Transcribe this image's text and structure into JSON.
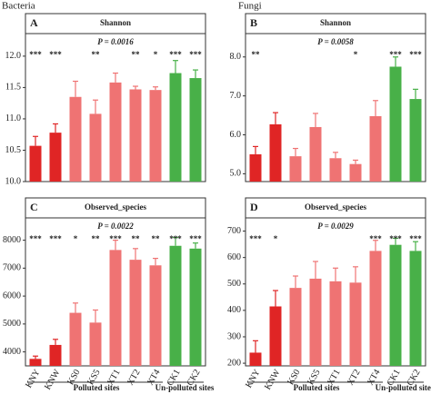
{
  "titles": [
    "Bacteria",
    "Fungi"
  ],
  "chart_data": [
    {
      "type": "bar",
      "panel": "A",
      "header": "Shannon",
      "annotation": "P = 0.0016",
      "values": [
        10.57,
        10.78,
        11.35,
        11.08,
        11.58,
        11.47,
        11.46,
        11.73,
        11.65
      ],
      "errors": [
        0.15,
        0.14,
        0.25,
        0.22,
        0.15,
        0.05,
        0.05,
        0.2,
        0.13
      ],
      "significance": [
        "***",
        "***",
        null,
        "**",
        null,
        "**",
        "*",
        "***",
        "***"
      ],
      "colors": [
        "#e02525",
        "#e02525",
        "#ef7373",
        "#ef7373",
        "#ef7373",
        "#ef7373",
        "#ef7373",
        "#48b048",
        "#48b048"
      ],
      "ylim": [
        10.0,
        12.36
      ],
      "yticks": [
        {
          "value": 10,
          "label": "10.0"
        },
        {
          "value": 10.5,
          "label": "10.5"
        },
        {
          "value": 11,
          "label": "11.0"
        },
        {
          "value": 11.5,
          "label": "11.5"
        },
        {
          "value": 12,
          "label": "12.0"
        }
      ]
    },
    {
      "type": "bar",
      "panel": "B",
      "header": "Shannon",
      "annotation": "P = 0.0058",
      "values": [
        5.5,
        6.27,
        5.45,
        6.2,
        5.4,
        5.25,
        6.48,
        7.75,
        6.92
      ],
      "errors": [
        0.2,
        0.3,
        0.2,
        0.35,
        0.15,
        0.1,
        0.4,
        0.25,
        0.25
      ],
      "significance": [
        "**",
        null,
        null,
        null,
        null,
        "*",
        null,
        "***",
        "***"
      ],
      "colors": [
        "#e02525",
        "#e02525",
        "#ef7373",
        "#ef7373",
        "#ef7373",
        "#ef7373",
        "#ef7373",
        "#48b048",
        "#48b048"
      ],
      "ylim": [
        4.8,
        8.6
      ],
      "yticks": [
        {
          "value": 5,
          "label": "5.0"
        },
        {
          "value": 6,
          "label": "6.0"
        },
        {
          "value": 7,
          "label": "7.0"
        },
        {
          "value": 8,
          "label": "8.0"
        }
      ]
    },
    {
      "type": "bar",
      "panel": "C",
      "header": "Observed_species",
      "annotation": "P = 0.0022",
      "categories": [
        "KNY",
        "KNW",
        "KS0",
        "KS5",
        "XT1",
        "XT2",
        "XT4",
        "CK1",
        "CK2"
      ],
      "values": [
        3750,
        4250,
        5400,
        5050,
        7650,
        7300,
        7100,
        7800,
        7700
      ],
      "errors": [
        100,
        200,
        350,
        450,
        350,
        400,
        250,
        300,
        200
      ],
      "significance": [
        "***",
        "***",
        "*",
        "**",
        "***",
        "**",
        "**",
        "***",
        "***"
      ],
      "colors": [
        "#e02525",
        "#e02525",
        "#ef7373",
        "#ef7373",
        "#ef7373",
        "#ef7373",
        "#ef7373",
        "#48b048",
        "#48b048"
      ],
      "ylim": [
        3500,
        8800
      ],
      "yticks": [
        4000,
        5000,
        6000,
        7000,
        8000
      ],
      "group_labels": [
        "Polluted sites",
        "Un-polluted sites"
      ]
    },
    {
      "type": "bar",
      "panel": "D",
      "header": "Observed_species",
      "annotation": "P = 0.0029",
      "categories": [
        "KNY",
        "KNW",
        "KS0",
        "KS5",
        "XT1",
        "XT2",
        "XT4",
        "CK1",
        "CK2"
      ],
      "values": [
        240,
        415,
        485,
        520,
        510,
        505,
        625,
        648,
        625
      ],
      "errors": [
        45,
        60,
        45,
        65,
        50,
        60,
        40,
        25,
        35
      ],
      "significance": [
        "***",
        "*",
        null,
        null,
        null,
        null,
        "***",
        "***",
        "***"
      ],
      "colors": [
        "#e02525",
        "#e02525",
        "#ef7373",
        "#ef7373",
        "#ef7373",
        "#ef7373",
        "#ef7373",
        "#48b048",
        "#48b048"
      ],
      "ylim": [
        190,
        750
      ],
      "yticks": [
        200,
        300,
        400,
        500,
        600,
        700
      ],
      "group_labels": [
        "Polluted sites",
        "Un-polluted sites"
      ]
    }
  ]
}
